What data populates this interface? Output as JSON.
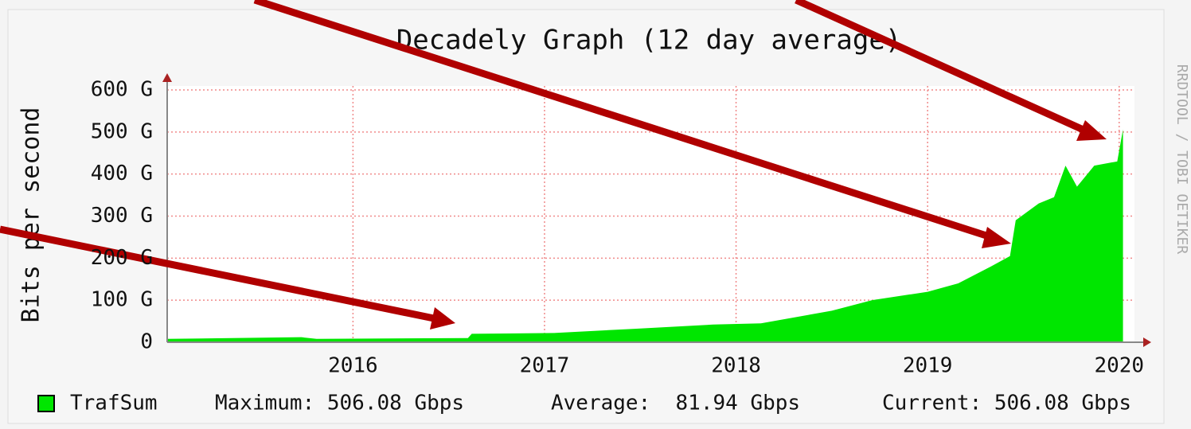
{
  "chart_data": {
    "type": "area",
    "title": "Decadely Graph (12 day average)",
    "y_label": "Bits per second",
    "side_text": "RRDTOOL / TOBI OETIKER",
    "x": [
      2015.03,
      2015.73,
      2015.81,
      2016.6,
      2016.62,
      2017.05,
      2017.47,
      2017.88,
      2018.13,
      2018.5,
      2018.71,
      2019.0,
      2019.16,
      2019.33,
      2019.43,
      2019.46,
      2019.58,
      2019.66,
      2019.72,
      2019.78,
      2019.87,
      2019.99,
      2020.02
    ],
    "series": [
      {
        "name": "TrafSum",
        "color": "#00e600",
        "values": [
          8,
          12,
          8,
          10,
          20,
          22,
          32,
          42,
          45,
          75,
          100,
          120,
          140,
          180,
          205,
          290,
          330,
          345,
          420,
          370,
          420,
          430,
          506
        ]
      }
    ],
    "xlim": [
      2015.03,
      2020.08
    ],
    "xticks": [
      2016,
      2017,
      2018,
      2019,
      2020
    ],
    "ylim": [
      0,
      600
    ],
    "yticks": [
      0,
      {
        "value": 100,
        "label": "100 G"
      },
      {
        "value": 200,
        "label": "200 G"
      },
      {
        "value": 300,
        "label": "300 G"
      },
      {
        "value": 400,
        "label": "400 G"
      },
      {
        "value": 500,
        "label": "500 G"
      },
      {
        "value": 600,
        "label": "600 G"
      }
    ],
    "grid": true,
    "legend_stats": [
      "Maximum: 506.08 Gbps",
      "Average:  81.94 Gbps",
      "Current: 506.08 Gbps"
    ]
  }
}
